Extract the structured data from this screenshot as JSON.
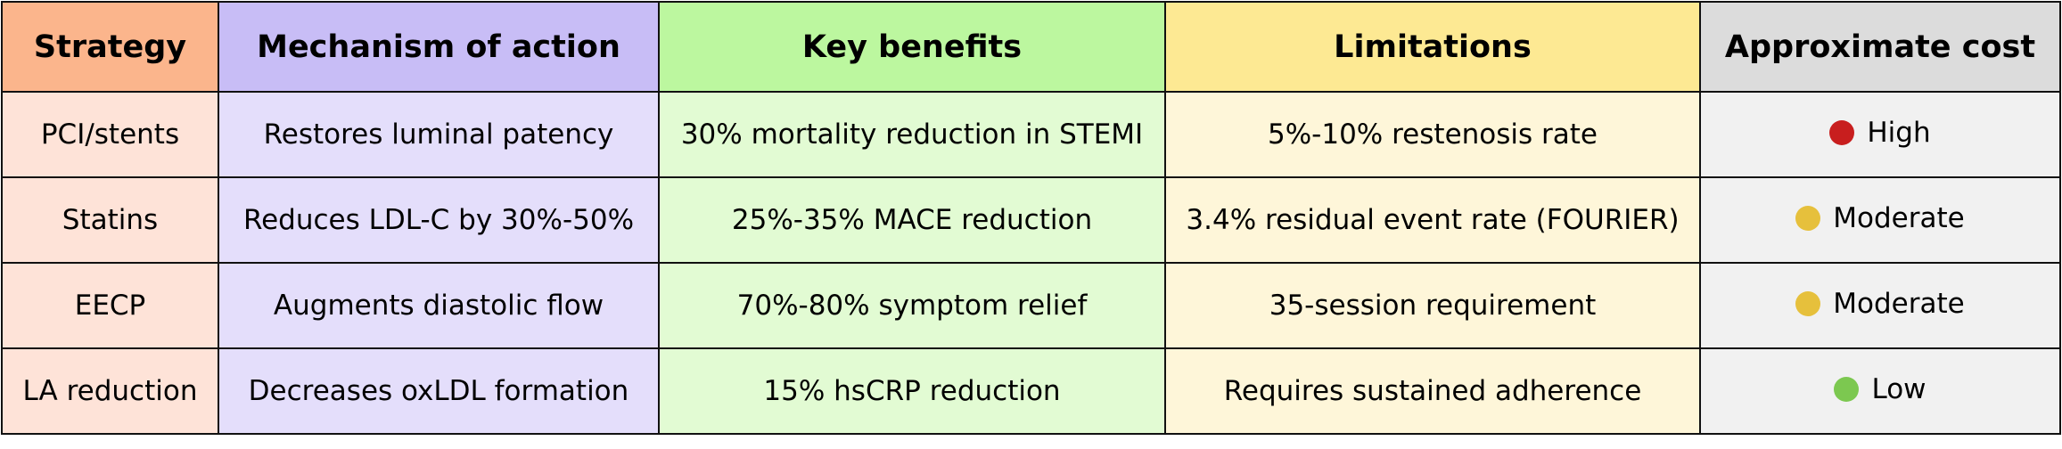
{
  "headers": {
    "strategy": "Strategy",
    "mechanism": "Mechanism of action",
    "benefits": "Key benefits",
    "limitations": "Limitations",
    "cost": "Approximate cost"
  },
  "colors": {
    "high": "#c81e1e",
    "moderate": "#e6c03c",
    "low": "#7cc850"
  },
  "rows": [
    {
      "strategy": "PCI/stents",
      "mechanism": "Restores luminal patency",
      "benefits": "30% mortality reduction in STEMI",
      "limitations": "5%-10% restenosis rate",
      "cost": "High",
      "cost_level": "high"
    },
    {
      "strategy": "Statins",
      "mechanism": "Reduces LDL-C by 30%-50%",
      "benefits": "25%-35% MACE reduction",
      "limitations": "3.4% residual event rate (FOURIER)",
      "cost": "Moderate",
      "cost_level": "moderate"
    },
    {
      "strategy": "EECP",
      "mechanism": "Augments diastolic flow",
      "benefits": "70%-80% symptom relief",
      "limitations": "35-session requirement",
      "cost": "Moderate",
      "cost_level": "moderate"
    },
    {
      "strategy": "LA reduction",
      "mechanism": "Decreases oxLDL formation",
      "benefits": "15% hsCRP reduction",
      "limitations": "Requires sustained adherence",
      "cost": "Low",
      "cost_level": "low"
    }
  ]
}
